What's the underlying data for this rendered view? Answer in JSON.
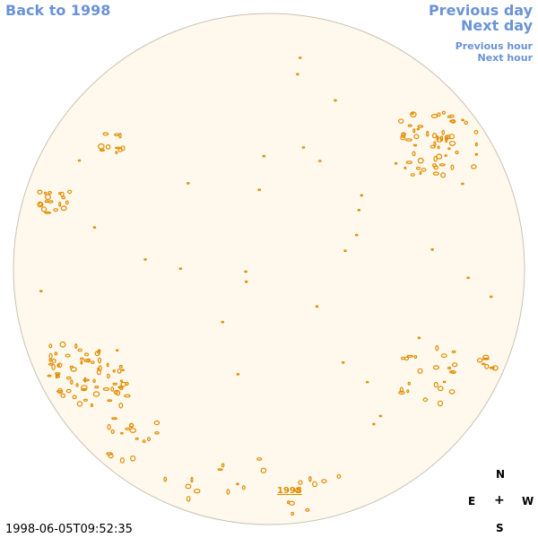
{
  "nav": {
    "back_label": "Back to 1998",
    "previous_day_label": "Previous day",
    "next_day_label": "Next day",
    "previous_hour_label": "Previous hour",
    "next_hour_label": "Next hour"
  },
  "timestamp": "1998-06-05T09:52:35",
  "year_link": "1998",
  "compass": {
    "north": "N",
    "south": "S",
    "east": "E",
    "west": "W",
    "center": "+"
  },
  "colors": {
    "disk_fill": "#fef9ec",
    "disk_edge": "#c9c2b6",
    "contour": "#e38b00",
    "nav": "#6a93d8"
  }
}
